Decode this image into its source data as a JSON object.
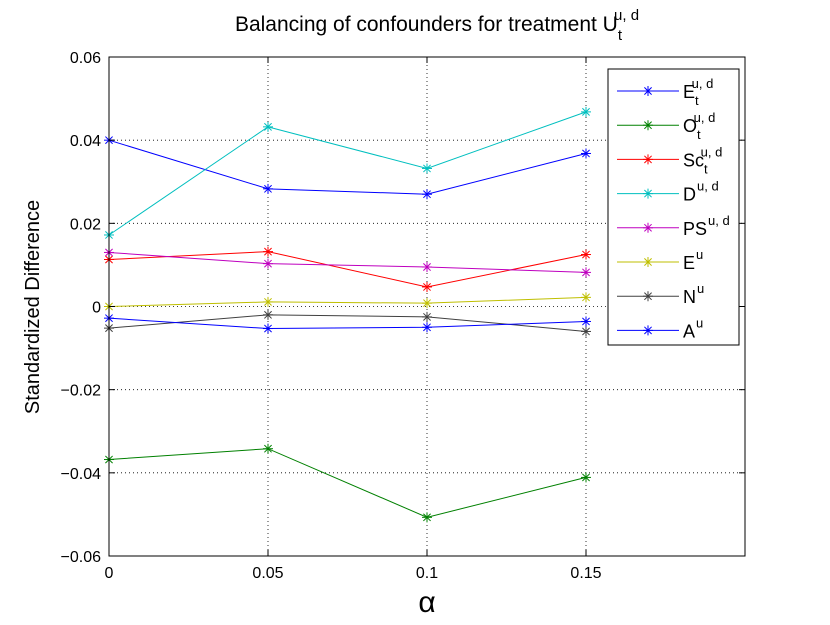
{
  "chart_data": {
    "type": "line",
    "title": {
      "base": "Balancing of confounders for treatment U",
      "sub": "t",
      "sup": "u, d"
    },
    "xlabel": "α",
    "ylabel": "Standardized Difference",
    "xlim": [
      0,
      0.2
    ],
    "ylim": [
      -0.06,
      0.06
    ],
    "x_ticks": [
      0,
      0.05,
      0.1,
      0.15
    ],
    "x_tick_labels": [
      "0",
      "0.05",
      "0.1",
      "0.15"
    ],
    "y_ticks": [
      0.06,
      0.04,
      0.02,
      0,
      -0.02,
      -0.04,
      -0.06
    ],
    "y_tick_labels": [
      "0.06",
      "0.04",
      "0.02",
      "0",
      "−0.02",
      "−0.04",
      "−0.06"
    ],
    "grid": true,
    "legend_position": "top-right",
    "x": [
      0,
      0.05,
      0.1,
      0.15
    ],
    "series": [
      {
        "name": "E",
        "sub": "t",
        "sup": "u, d",
        "color": "#0000ff",
        "values": [
          0.04,
          0.0283,
          0.027,
          0.0368
        ]
      },
      {
        "name": "O",
        "sub": "t",
        "sup": "u, d",
        "color": "#008000",
        "values": [
          -0.0368,
          -0.0342,
          -0.0507,
          -0.0411
        ]
      },
      {
        "name": "Sc",
        "sub": "t",
        "sup": "u, d",
        "color": "#ff0000",
        "values": [
          0.0113,
          0.0132,
          0.0047,
          0.0125
        ]
      },
      {
        "name": "D",
        "sub": "",
        "sup": "u, d",
        "color": "#00bfbf",
        "values": [
          0.0172,
          0.0432,
          0.0332,
          0.0468
        ]
      },
      {
        "name": "PS",
        "sub": "",
        "sup": "u, d",
        "color": "#bf00bf",
        "values": [
          0.013,
          0.0103,
          0.0095,
          0.0082
        ]
      },
      {
        "name": "E",
        "sub": "",
        "sup": "u",
        "color": "#bfbf00",
        "values": [
          0.0,
          0.0011,
          0.0008,
          0.0022
        ]
      },
      {
        "name": "N",
        "sub": "",
        "sup": "u",
        "color": "#404040",
        "values": [
          -0.0052,
          -0.002,
          -0.0025,
          -0.006
        ]
      },
      {
        "name": "A",
        "sub": "",
        "sup": "u",
        "color": "#0000ff",
        "values": [
          -0.0028,
          -0.0053,
          -0.005,
          -0.0036
        ]
      }
    ]
  }
}
